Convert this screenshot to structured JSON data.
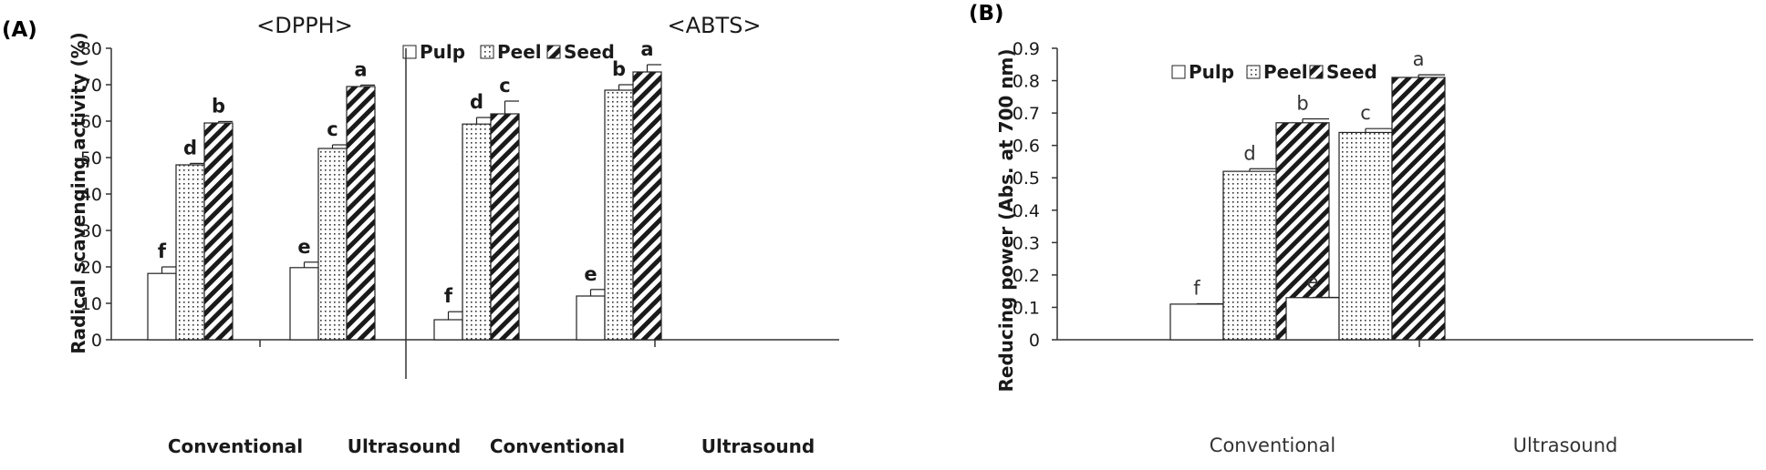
{
  "figure": {
    "panel_a_label": "(A)",
    "panel_b_label": "(B)",
    "colors": {
      "axis": "#333333",
      "bar_edge": "#222222",
      "divider": "#333333"
    }
  },
  "legend": {
    "items": [
      "Pulp",
      "Peel",
      "Seed"
    ],
    "patterns": [
      "blank",
      "dotted",
      "diagonal-hatch"
    ]
  },
  "chart_data": [
    {
      "type": "bar",
      "title": "<DPPH>",
      "categories": [
        "Conventional",
        "Ultrasound"
      ],
      "ylabel": "Radical scavenging activity (%)",
      "ylim": [
        0,
        80
      ],
      "yticks": [
        0,
        10,
        20,
        30,
        40,
        50,
        60,
        70,
        80
      ],
      "series": [
        {
          "name": "Pulp",
          "values": [
            18.2,
            19.8
          ],
          "errors": [
            1.8,
            1.5
          ],
          "labels": [
            "f",
            "e"
          ]
        },
        {
          "name": "Peel",
          "values": [
            48.0,
            52.5
          ],
          "errors": [
            0.4,
            1.0
          ],
          "labels": [
            "d",
            "c"
          ]
        },
        {
          "name": "Seed",
          "values": [
            59.5,
            69.5
          ],
          "errors": [
            0.4,
            0.4
          ],
          "labels": [
            "b",
            "a"
          ]
        }
      ]
    },
    {
      "type": "bar",
      "title": "<ABTS>",
      "categories": [
        "Conventional",
        "Ultrasound"
      ],
      "ylim": [
        0,
        80
      ],
      "series": [
        {
          "name": "Pulp",
          "values": [
            5.5,
            12.0
          ],
          "errors": [
            2.2,
            1.8
          ],
          "labels": [
            "f",
            "e"
          ]
        },
        {
          "name": "Peel",
          "values": [
            59.2,
            68.5
          ],
          "errors": [
            1.8,
            1.5
          ],
          "labels": [
            "d",
            "b"
          ]
        },
        {
          "name": "Seed",
          "values": [
            62.0,
            73.5
          ],
          "errors": [
            3.5,
            2.0
          ],
          "labels": [
            "c",
            "a"
          ]
        }
      ]
    },
    {
      "type": "bar",
      "categories": [
        "Conventional",
        "Ultrasound"
      ],
      "ylabel": "Reducing power (Abs. at 700 nm)",
      "ylim": [
        0,
        0.9
      ],
      "yticks": [
        0,
        0.1,
        0.2,
        0.3,
        0.4,
        0.5,
        0.6,
        0.7,
        0.8,
        0.9
      ],
      "series": [
        {
          "name": "Pulp",
          "values": [
            0.11,
            0.13
          ],
          "errors": [
            0.001,
            0.001
          ],
          "labels": [
            "f",
            "e"
          ]
        },
        {
          "name": "Peel",
          "values": [
            0.52,
            0.64
          ],
          "errors": [
            0.008,
            0.012
          ],
          "labels": [
            "d",
            "c"
          ]
        },
        {
          "name": "Seed",
          "values": [
            0.67,
            0.81
          ],
          "errors": [
            0.012,
            0.008
          ],
          "labels": [
            "b",
            "a"
          ]
        }
      ]
    }
  ]
}
